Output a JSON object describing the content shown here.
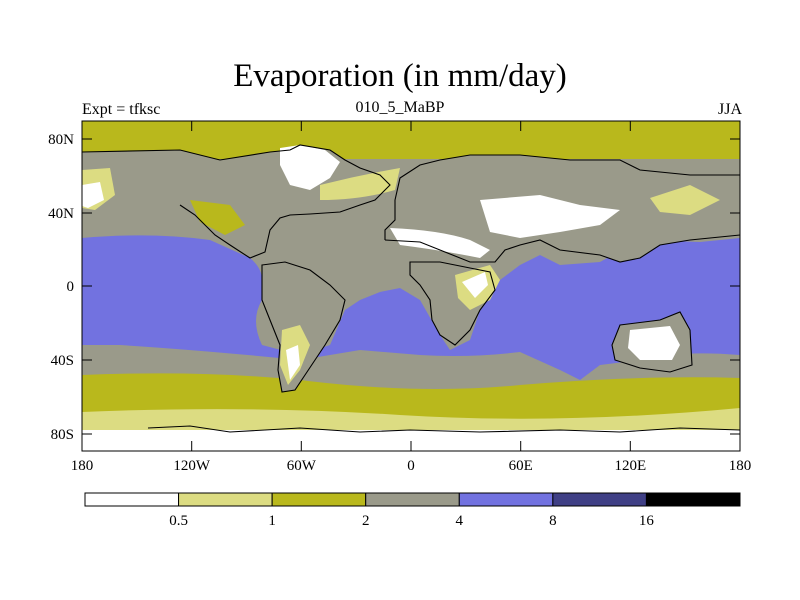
{
  "title": "Evaporation (in mm/day)",
  "experiment": "Expt = tfksc",
  "period": "010_5_MaBP",
  "season": "JJA",
  "map": {
    "lat_ticks": [
      "80N",
      "40N",
      "0",
      "40S",
      "80S"
    ],
    "lon_ticks": [
      "180",
      "120W",
      "60W",
      "0",
      "60E",
      "120E",
      "180"
    ]
  },
  "legend": {
    "colors": [
      "#ffffff",
      "#dcdc82",
      "#b9b81c",
      "#9a9a8a",
      "#7272e0",
      "#3f3f85",
      "#000000"
    ],
    "labels": [
      "0.5",
      "1",
      "2",
      "4",
      "8",
      "16"
    ]
  },
  "colors": {
    "ocean_tropical": "#7272e0",
    "ocean_mid": "#9a9a8a",
    "ocean_high": "#b9b81c",
    "light": "#dcdc82",
    "dry": "#ffffff",
    "coast": "#000000"
  }
}
